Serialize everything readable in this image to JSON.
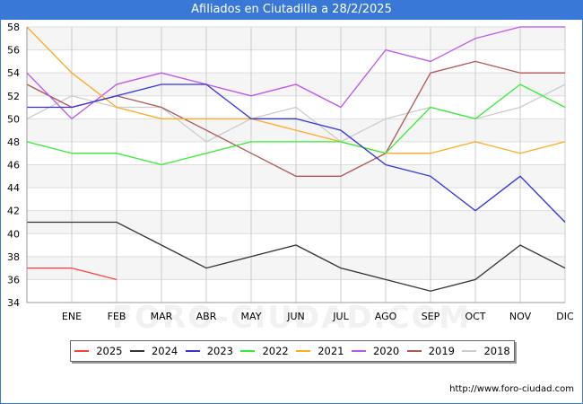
{
  "title": "Afiliados en Ciutadilla a 28/2/2025",
  "watermark": "FORO-CIUDAD.COM",
  "footer_url": "http://www.foro-ciudad.com",
  "chart_data": {
    "type": "line",
    "title": "Afiliados en Ciutadilla a 28/2/2025",
    "x": [
      "",
      "ENE",
      "FEB",
      "MAR",
      "ABR",
      "MAY",
      "JUN",
      "JUL",
      "AGO",
      "SEP",
      "OCT",
      "NOV",
      "DIC"
    ],
    "ylim": [
      34,
      58
    ],
    "yticks": [
      34,
      36,
      38,
      40,
      42,
      44,
      46,
      48,
      50,
      52,
      54,
      56,
      58
    ],
    "grid": true,
    "legend_position": "bottom",
    "series": [
      {
        "name": "2025",
        "color": "#ff3b3b",
        "values": [
          37,
          37,
          36,
          null,
          null,
          null,
          null,
          null,
          null,
          null,
          null,
          null,
          null
        ]
      },
      {
        "name": "2024",
        "color": "#333333",
        "values": [
          41,
          41,
          41,
          39,
          37,
          38,
          39,
          37,
          36,
          35,
          36,
          39,
          37
        ]
      },
      {
        "name": "2023",
        "color": "#3333dd",
        "values": [
          51,
          51,
          52,
          53,
          53,
          50,
          50,
          49,
          46,
          45,
          42,
          45,
          41
        ]
      },
      {
        "name": "2022",
        "color": "#33ee33",
        "values": [
          48,
          47,
          47,
          46,
          47,
          48,
          48,
          48,
          47,
          51,
          50,
          53,
          51
        ]
      },
      {
        "name": "2021",
        "color": "#ffaa22",
        "values": [
          58,
          54,
          51,
          50,
          50,
          50,
          49,
          48,
          47,
          47,
          48,
          47,
          48
        ]
      },
      {
        "name": "2020",
        "color": "#bb55ee",
        "values": [
          54,
          50,
          53,
          54,
          53,
          52,
          53,
          51,
          56,
          55,
          57,
          58,
          58
        ]
      },
      {
        "name": "2019",
        "color": "#b05555",
        "values": [
          53,
          51,
          52,
          51,
          49,
          47,
          45,
          45,
          47,
          54,
          55,
          54,
          54
        ]
      },
      {
        "name": "2018",
        "color": "#cccccc",
        "values": [
          50,
          52,
          51,
          51,
          48,
          50,
          51,
          48,
          50,
          51,
          50,
          51,
          53
        ]
      }
    ]
  }
}
